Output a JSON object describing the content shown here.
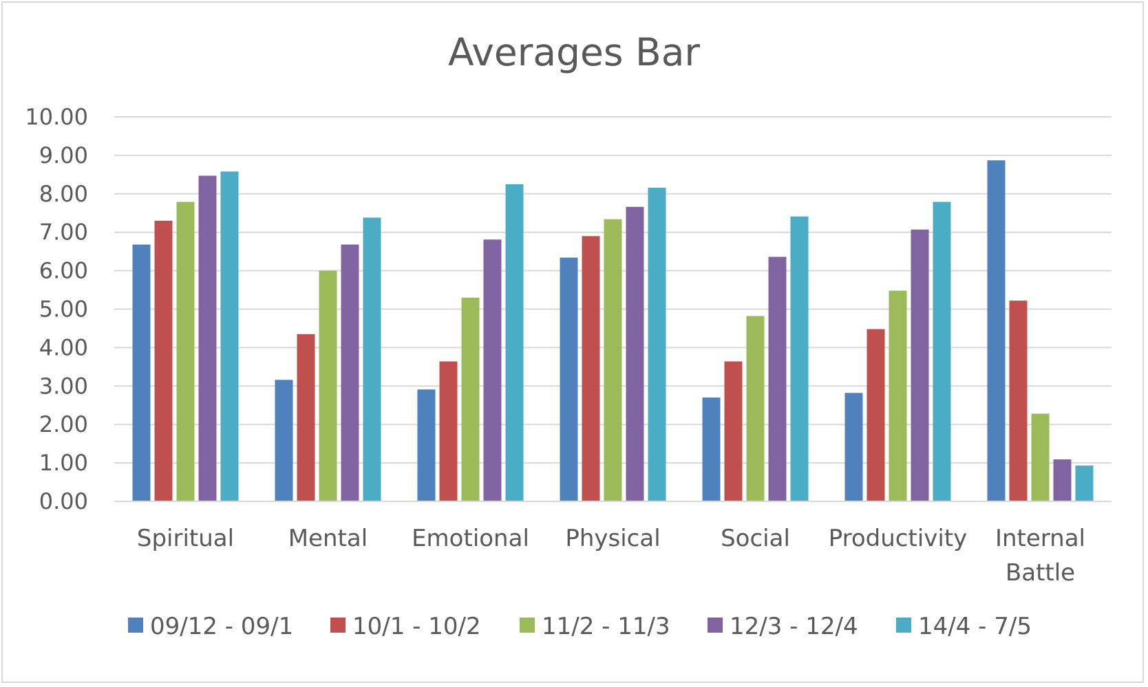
{
  "chart_data": {
    "type": "bar",
    "title": "Averages Bar",
    "xlabel": "",
    "ylabel": "",
    "ylim": [
      0,
      10
    ],
    "yticks": [
      "0.00",
      "1.00",
      "2.00",
      "3.00",
      "4.00",
      "5.00",
      "6.00",
      "7.00",
      "8.00",
      "9.00",
      "10.00"
    ],
    "grid": true,
    "legend_position": "bottom",
    "categories": [
      [
        "Spiritual"
      ],
      [
        "Mental"
      ],
      [
        "Emotional"
      ],
      [
        "Physical"
      ],
      [
        "Social"
      ],
      [
        "Productivity"
      ],
      [
        "Internal",
        "Battle"
      ]
    ],
    "series": [
      {
        "name": "09/12 - 09/1",
        "color": "#4f81bd",
        "values": [
          6.68,
          3.16,
          2.91,
          6.34,
          2.7,
          2.82,
          8.87
        ]
      },
      {
        "name": "10/1 - 10/2",
        "color": "#c0504d",
        "values": [
          7.3,
          4.35,
          3.64,
          6.9,
          3.64,
          4.48,
          5.22
        ]
      },
      {
        "name": "11/2 - 11/3",
        "color": "#9bbb59",
        "values": [
          7.79,
          6.0,
          5.3,
          7.34,
          4.82,
          5.48,
          2.28
        ]
      },
      {
        "name": "12/3 - 12/4",
        "color": "#8064a2",
        "values": [
          8.47,
          6.68,
          6.81,
          7.66,
          6.36,
          7.07,
          1.09
        ]
      },
      {
        "name": "14/4 - 7/5",
        "color": "#4bacc6",
        "values": [
          8.58,
          7.38,
          8.25,
          8.16,
          7.41,
          7.79,
          0.93
        ]
      }
    ]
  },
  "style": {
    "gridline_color": "#d9d9d9",
    "text_color": "#595959"
  }
}
